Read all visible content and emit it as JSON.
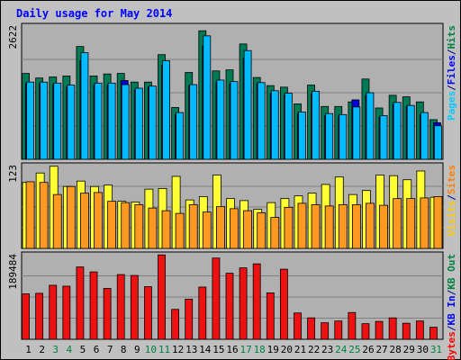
{
  "chart_data": {
    "type": "bar",
    "title": "Daily usage for May 2014",
    "categories": [
      "1",
      "2",
      "3",
      "4",
      "5",
      "6",
      "7",
      "8",
      "9",
      "10",
      "11",
      "12",
      "13",
      "14",
      "15",
      "16",
      "17",
      "18",
      "19",
      "20",
      "21",
      "22",
      "23",
      "24",
      "25",
      "26",
      "27",
      "28",
      "29",
      "30",
      "31"
    ],
    "weekend_days": [
      "3",
      "4",
      "10",
      "11",
      "17",
      "18",
      "24",
      "25",
      "31"
    ],
    "panels": [
      {
        "id": "hits",
        "max_label": "2622",
        "ylim": [
          0,
          2622
        ],
        "grid": true,
        "legend": [
          {
            "text": "Pages",
            "color": "#00ccff"
          },
          {
            "text": "/",
            "color": "#000080"
          },
          {
            "text": "Files",
            "color": "#0000ff"
          },
          {
            "text": "/",
            "color": "#000080"
          },
          {
            "text": "Hits",
            "color": "#008040"
          }
        ],
        "series": [
          {
            "name": "Hits",
            "color": "#007a55",
            "values": [
              1690,
              1600,
              1620,
              1640,
              2220,
              1640,
              1680,
              1690,
              1520,
              1520,
              2060,
              1020,
              1710,
              2530,
              1740,
              1760,
              2270,
              1610,
              1450,
              1420,
              1090,
              1460,
              1040,
              1040,
              1130,
              1580,
              1010,
              1260,
              1230,
              1130,
              780
            ]
          },
          {
            "name": "Files",
            "color": "#0000dd",
            "values": [
              1490,
              1490,
              1470,
              1420,
              1940,
              1460,
              1460,
              1550,
              1360,
              1420,
              1850,
              880,
              1450,
              2230,
              1510,
              1480,
              1990,
              1490,
              1300,
              1270,
              900,
              1290,
              860,
              850,
              1170,
              1260,
              830,
              1080,
              1040,
              880,
              720
            ]
          },
          {
            "name": "Pages",
            "color": "#00bbff",
            "values": [
              1520,
              1520,
              1500,
              1460,
              2100,
              1500,
              1500,
              1470,
              1400,
              1440,
              1940,
              920,
              1470,
              2430,
              1560,
              1530,
              2140,
              1510,
              1350,
              1300,
              930,
              1340,
              900,
              880,
              1030,
              1310,
              860,
              1120,
              1060,
              920,
              660
            ]
          }
        ]
      },
      {
        "id": "visits",
        "max_label": "123",
        "ylim": [
          0,
          123
        ],
        "grid": true,
        "legend": [
          {
            "text": "Visits",
            "color": "#ffcc00"
          },
          {
            "text": "/",
            "color": "#000080"
          },
          {
            "text": "Sites",
            "color": "#ff8000"
          }
        ],
        "series": [
          {
            "name": "Visits",
            "color": "#ffff33",
            "values": [
              98,
              112,
              122,
              92,
              100,
              92,
              94,
              70,
              69,
              88,
              89,
              107,
              72,
              77,
              109,
              74,
              71,
              58,
              68,
              74,
              78,
              82,
              95,
              106,
              80,
              86,
              109,
              108,
              102,
              115,
              76
            ]
          },
          {
            "name": "Sites",
            "color": "#ff9922",
            "values": [
              99,
              98,
              80,
              92,
              82,
              83,
              70,
              68,
              65,
              60,
              56,
              52,
              65,
              54,
              62,
              59,
              56,
              53,
              46,
              61,
              67,
              65,
              63,
              65,
              65,
              67,
              64,
              74,
              74,
              75,
              77
            ]
          }
        ]
      },
      {
        "id": "kbytes",
        "max_label": "189484",
        "ylim": [
          0,
          189484
        ],
        "grid": true,
        "legend": [
          {
            "text": "KBytes",
            "color": "#ff0000"
          },
          {
            "text": "/",
            "color": "#000080"
          },
          {
            "text": "KB In",
            "color": "#0000ff"
          },
          {
            "text": "/",
            "color": "#000080"
          },
          {
            "text": "KB Out",
            "color": "#008040"
          }
        ],
        "series": [
          {
            "name": "KBytes",
            "color": "#ee1111",
            "values": [
              102000,
              103000,
              121000,
              119000,
              162000,
              151000,
              114000,
              145000,
              143000,
              118000,
              189000,
              67000,
              90000,
              117000,
              182000,
              148000,
              160000,
              169000,
              104000,
              157000,
              59000,
              48000,
              37000,
              41000,
              60000,
              35000,
              40000,
              48000,
              36000,
              41000,
              27000
            ]
          }
        ]
      }
    ]
  }
}
